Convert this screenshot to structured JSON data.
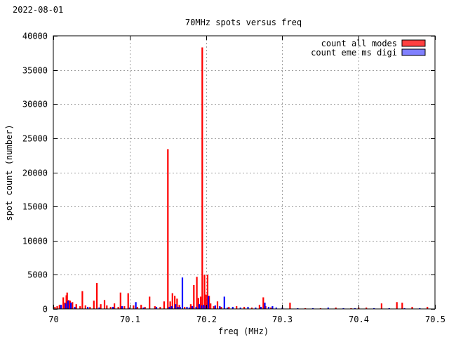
{
  "date_label": "2022-08-01",
  "colors": {
    "all_modes": "#ff0000",
    "eme": "#0000ff",
    "legend_all": "#ff4040",
    "legend_eme": "#8080ff"
  },
  "chart_data": {
    "type": "bar",
    "title": "70MHz spots versus freq",
    "xlabel": "freq (MHz)",
    "ylabel": "spot count (number)",
    "xlim": [
      70.0,
      70.5
    ],
    "ylim": [
      0,
      40000
    ],
    "grid": true,
    "legend_position": "top-right",
    "x_ticks": [
      "70",
      "70.1",
      "70.2",
      "70.3",
      "70.4",
      "70.5"
    ],
    "x_tick_values": [
      70.0,
      70.1,
      70.2,
      70.3,
      70.4,
      70.5
    ],
    "y_ticks": [
      "0",
      "5000",
      "10000",
      "15000",
      "20000",
      "25000",
      "30000",
      "35000",
      "40000"
    ],
    "y_tick_values": [
      0,
      5000,
      10000,
      15000,
      20000,
      25000,
      30000,
      35000,
      40000
    ],
    "series": [
      {
        "name": "count all modes",
        "points": [
          [
            70.002,
            300
          ],
          [
            70.005,
            400
          ],
          [
            70.008,
            600
          ],
          [
            70.013,
            1700
          ],
          [
            70.015,
            900
          ],
          [
            70.017,
            2000
          ],
          [
            70.018,
            2400
          ],
          [
            70.02,
            1300
          ],
          [
            70.022,
            1200
          ],
          [
            70.025,
            1000
          ],
          [
            70.03,
            700
          ],
          [
            70.035,
            400
          ],
          [
            70.038,
            2600
          ],
          [
            70.042,
            500
          ],
          [
            70.048,
            300
          ],
          [
            70.053,
            1200
          ],
          [
            70.057,
            3800
          ],
          [
            70.062,
            700
          ],
          [
            70.067,
            1300
          ],
          [
            70.07,
            500
          ],
          [
            70.075,
            300
          ],
          [
            70.08,
            800
          ],
          [
            70.085,
            300
          ],
          [
            70.088,
            2400
          ],
          [
            70.093,
            400
          ],
          [
            70.098,
            2300
          ],
          [
            70.105,
            500
          ],
          [
            70.11,
            300
          ],
          [
            70.115,
            600
          ],
          [
            70.12,
            300
          ],
          [
            70.126,
            1800
          ],
          [
            70.133,
            400
          ],
          [
            70.14,
            300
          ],
          [
            70.145,
            1100
          ],
          [
            70.15,
            23400
          ],
          [
            70.153,
            1100
          ],
          [
            70.156,
            2300
          ],
          [
            70.159,
            1900
          ],
          [
            70.162,
            1500
          ],
          [
            70.165,
            600
          ],
          [
            70.172,
            300
          ],
          [
            70.18,
            700
          ],
          [
            70.184,
            3500
          ],
          [
            70.188,
            4700
          ],
          [
            70.19,
            1600
          ],
          [
            70.193,
            1800
          ],
          [
            70.195,
            38300
          ],
          [
            70.198,
            5000
          ],
          [
            70.2,
            2100
          ],
          [
            70.202,
            5000
          ],
          [
            70.204,
            1900
          ],
          [
            70.206,
            800
          ],
          [
            70.21,
            400
          ],
          [
            70.215,
            1100
          ],
          [
            70.22,
            300
          ],
          [
            70.23,
            300
          ],
          [
            70.24,
            400
          ],
          [
            70.25,
            300
          ],
          [
            70.26,
            200
          ],
          [
            70.27,
            600
          ],
          [
            70.275,
            1700
          ],
          [
            70.278,
            400
          ],
          [
            70.285,
            200
          ],
          [
            70.3,
            200
          ],
          [
            70.31,
            900
          ],
          [
            70.33,
            100
          ],
          [
            70.35,
            100
          ],
          [
            70.37,
            200
          ],
          [
            70.39,
            100
          ],
          [
            70.4,
            200
          ],
          [
            70.41,
            200
          ],
          [
            70.43,
            800
          ],
          [
            70.44,
            100
          ],
          [
            70.45,
            1000
          ],
          [
            70.457,
            900
          ],
          [
            70.47,
            300
          ],
          [
            70.49,
            300
          ]
        ]
      },
      {
        "name": "count eme ms digi",
        "points": [
          [
            70.01,
            600
          ],
          [
            70.016,
            800
          ],
          [
            70.019,
            1200
          ],
          [
            70.023,
            900
          ],
          [
            70.028,
            300
          ],
          [
            70.045,
            300
          ],
          [
            70.06,
            200
          ],
          [
            70.078,
            300
          ],
          [
            70.09,
            400
          ],
          [
            70.1,
            200
          ],
          [
            70.108,
            1000
          ],
          [
            70.118,
            200
          ],
          [
            70.135,
            300
          ],
          [
            70.152,
            300
          ],
          [
            70.155,
            400
          ],
          [
            70.16,
            700
          ],
          [
            70.163,
            300
          ],
          [
            70.166,
            300
          ],
          [
            70.169,
            4600
          ],
          [
            70.175,
            300
          ],
          [
            70.178,
            200
          ],
          [
            70.182,
            400
          ],
          [
            70.187,
            300
          ],
          [
            70.191,
            700
          ],
          [
            70.194,
            500
          ],
          [
            70.197,
            600
          ],
          [
            70.2,
            400
          ],
          [
            70.203,
            1900
          ],
          [
            70.212,
            500
          ],
          [
            70.218,
            400
          ],
          [
            70.224,
            1800
          ],
          [
            70.228,
            200
          ],
          [
            70.235,
            300
          ],
          [
            70.245,
            200
          ],
          [
            70.255,
            300
          ],
          [
            70.265,
            200
          ],
          [
            70.272,
            300
          ],
          [
            70.277,
            900
          ],
          [
            70.282,
            300
          ],
          [
            70.287,
            400
          ],
          [
            70.292,
            200
          ],
          [
            70.3,
            200
          ],
          [
            70.32,
            100
          ],
          [
            70.34,
            100
          ],
          [
            70.36,
            200
          ],
          [
            70.38,
            100
          ],
          [
            70.395,
            100
          ],
          [
            70.42,
            100
          ],
          [
            70.44,
            100
          ],
          [
            70.46,
            100
          ],
          [
            70.48,
            100
          ]
        ]
      }
    ]
  }
}
